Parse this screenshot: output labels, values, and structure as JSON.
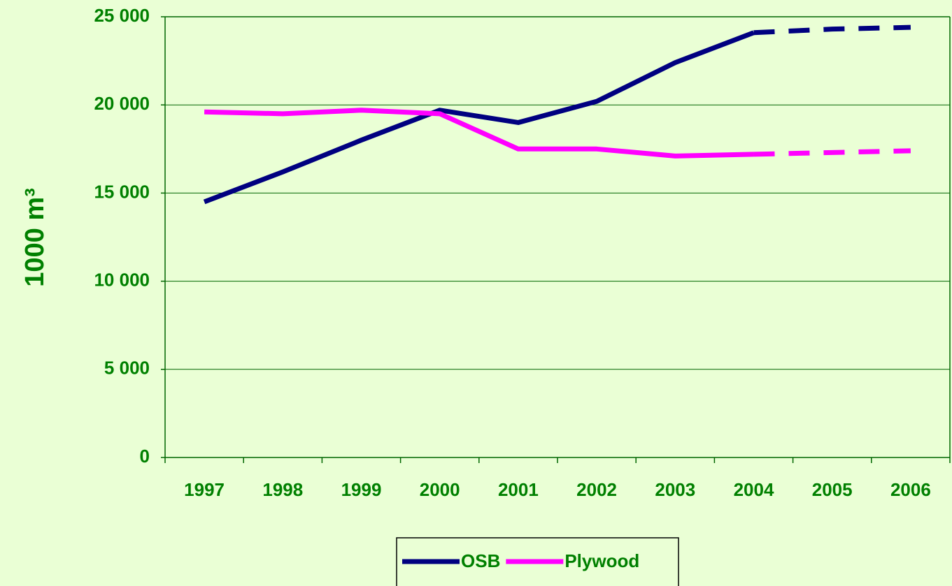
{
  "chart_data": {
    "type": "line",
    "y_label": "1000 m³",
    "categories": [
      "1997",
      "1998",
      "1999",
      "2000",
      "2001",
      "2002",
      "2003",
      "2004",
      "2005",
      "2006"
    ],
    "series": [
      {
        "name": "OSB",
        "color": "#000080",
        "values": [
          14500,
          16200,
          18000,
          19700,
          19000,
          20200,
          22400,
          24100,
          24300,
          24400
        ]
      },
      {
        "name": "Plywood",
        "color": "#ff00ff",
        "values": [
          19600,
          19500,
          19700,
          19500,
          17500,
          17500,
          17100,
          17200,
          17300,
          17400
        ]
      }
    ],
    "dashed_from": "2004",
    "ylim": [
      0,
      25000
    ],
    "yticks": [
      0,
      {
        "value": 5000,
        "label": "5 000"
      },
      {
        "value": 10000,
        "label": "10 000"
      },
      {
        "value": 15000,
        "label": "15 000"
      },
      {
        "value": 20000,
        "label": "20 000"
      },
      {
        "value": 25000,
        "label": "25 000"
      }
    ],
    "grid": true,
    "legend": "bottom"
  }
}
